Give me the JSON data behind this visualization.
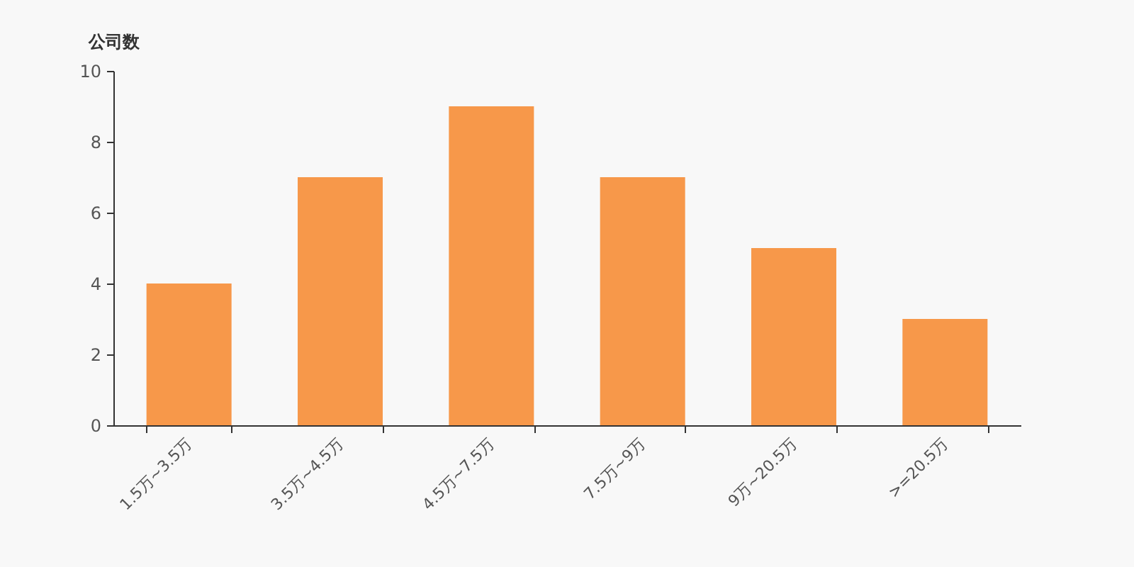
{
  "chart_data": {
    "type": "bar",
    "ylabel": "公司数",
    "categories": [
      "1.5万~3.5万",
      "3.5万~4.5万",
      "4.5万~7.5万",
      "7.5万~9万",
      "9万~20.5万",
      ">=20.5万"
    ],
    "values": [
      4,
      7,
      9,
      7,
      5,
      3
    ],
    "color": "#f7984a",
    "ylim": [
      0,
      10
    ],
    "yticks": [
      0,
      2,
      4,
      6,
      8,
      10
    ],
    "grid": false
  }
}
